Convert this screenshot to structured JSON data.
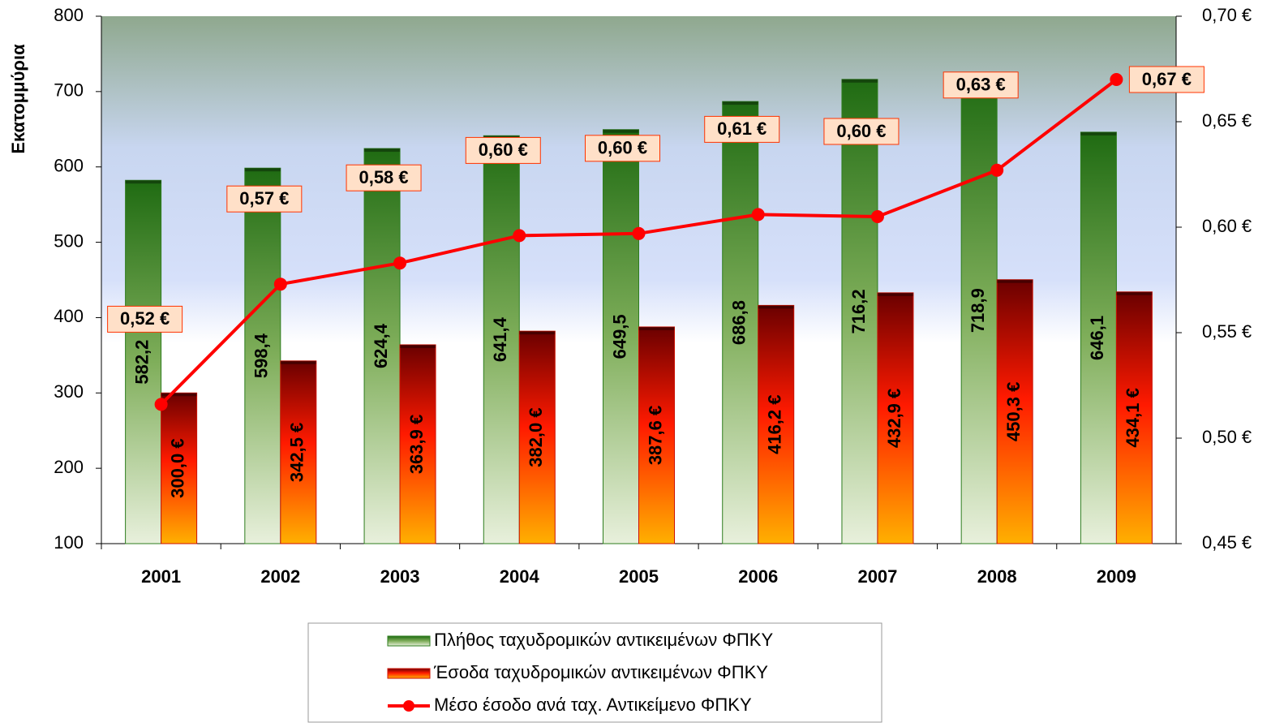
{
  "chart_data": {
    "type": "bar",
    "y_label": "Εκατομμύρια",
    "categories": [
      "2001",
      "2002",
      "2003",
      "2004",
      "2005",
      "2006",
      "2007",
      "2008",
      "2009"
    ],
    "series": [
      {
        "name": "Πλήθος ταχυδρομικών αντικειμένων ΦΠΚΥ",
        "type": "bar",
        "color": "#2e7d1e",
        "values": [
          582.2,
          598.4,
          624.4,
          641.4,
          649.5,
          686.8,
          716.2,
          718.9,
          646.1
        ],
        "value_labels": [
          "582,2",
          "598,4",
          "624,4",
          "641,4",
          "649,5",
          "686,8",
          "716,2",
          "718,9",
          "646,1"
        ]
      },
      {
        "name": "Έσοδα ταχυδρομικών αντικειμένων ΦΠΚΥ",
        "type": "bar",
        "color": "#cc1100",
        "values": [
          300.0,
          342.5,
          363.9,
          382.0,
          387.6,
          416.2,
          432.9,
          450.3,
          434.1
        ],
        "value_labels": [
          "300,0 €",
          "342,5 €",
          "363,9 €",
          "382,0 €",
          "387,6 €",
          "416,2 €",
          "432,9 €",
          "450,3 €",
          "434,1 €"
        ]
      },
      {
        "name": "Μέσο έσοδο ανά ταχ. Αντικείμενο ΦΠΚΥ",
        "type": "line",
        "axis": "y2",
        "color": "#ff0000",
        "values": [
          0.516,
          0.573,
          0.583,
          0.596,
          0.597,
          0.606,
          0.605,
          0.627,
          0.67
        ],
        "value_labels": [
          "0,52 €",
          "0,57 €",
          "0,58 €",
          "0,60 €",
          "0,60 €",
          "0,61 €",
          "0,60 €",
          "0,63 €",
          "0,67 €"
        ]
      }
    ],
    "ylim": [
      100,
      800
    ],
    "yticks": [
      100,
      200,
      300,
      400,
      500,
      600,
      700,
      800
    ],
    "y2lim": [
      0.45,
      0.7
    ],
    "y2ticks": [
      {
        "value": 0.45,
        "label": "0,45 €"
      },
      {
        "value": 0.5,
        "label": "0,50 €"
      },
      {
        "value": 0.55,
        "label": "0,55 €"
      },
      {
        "value": 0.6,
        "label": "0,60 €"
      },
      {
        "value": 0.65,
        "label": "0,65 €"
      },
      {
        "value": 0.7,
        "label": "0,70 €"
      }
    ],
    "legend": "bottom"
  }
}
